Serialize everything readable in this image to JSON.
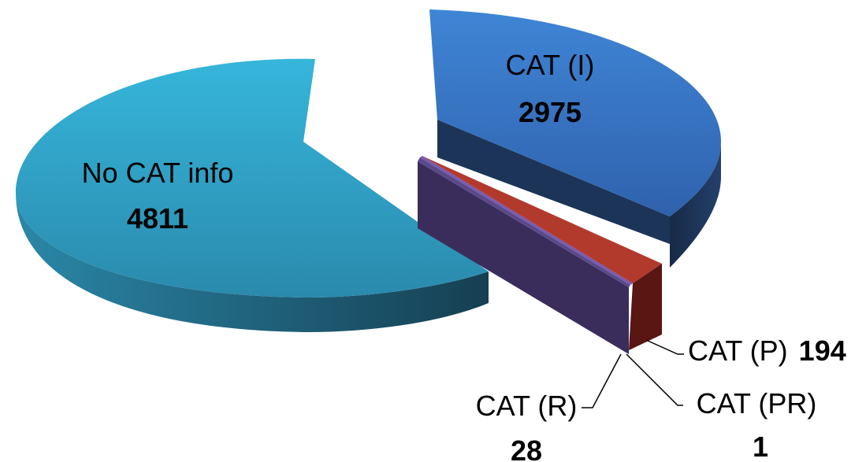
{
  "chart_data": {
    "type": "pie",
    "title": "",
    "slices": [
      {
        "label": "No CAT info",
        "value": 4811,
        "color": "#2f98c0"
      },
      {
        "label": "CAT (I)",
        "value": 2975,
        "color": "#3b78c6"
      },
      {
        "label": "CAT (P)",
        "value": 194,
        "color": "#b03a2e"
      },
      {
        "label": "CAT (PR)",
        "value": 1,
        "color": "#7a5bb0"
      },
      {
        "label": "CAT (R)",
        "value": 28,
        "color": "#3f3466"
      }
    ]
  }
}
